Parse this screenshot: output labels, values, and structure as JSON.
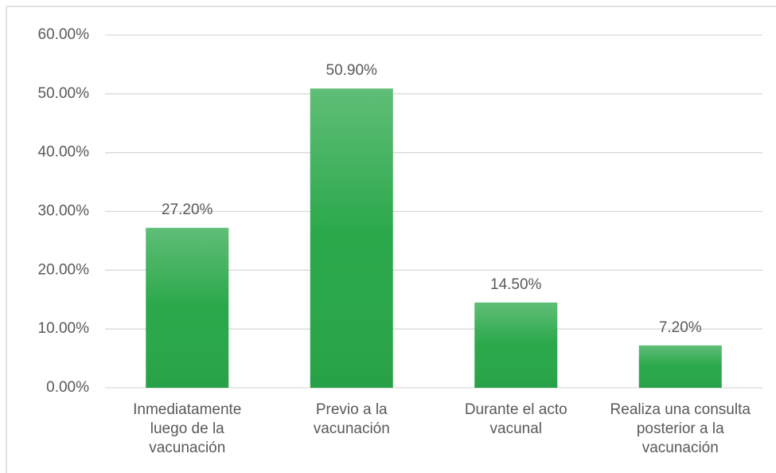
{
  "chart_data": {
    "type": "bar",
    "categories": [
      "Inmediatamente luego de la vacunación",
      "Previo a la vacunación",
      "Durante el acto vacunal",
      "Realiza una consulta posterior a la vacunación"
    ],
    "values": [
      27.2,
      50.9,
      14.5,
      7.2
    ],
    "value_labels": [
      "27.20%",
      "50.90%",
      "14.50%",
      "7.20%"
    ],
    "color": "#2aa84a",
    "ylim": [
      0,
      60
    ],
    "yticks": [
      {
        "value": 0,
        "label": "0.00%"
      },
      {
        "value": 10,
        "label": "10.00%"
      },
      {
        "value": 20,
        "label": "20.00%"
      },
      {
        "value": 30,
        "label": "30.00%"
      },
      {
        "value": 40,
        "label": "40.00%"
      },
      {
        "value": 50,
        "label": "50.00%"
      },
      {
        "value": 60,
        "label": "60.00%"
      }
    ],
    "grid": true
  }
}
